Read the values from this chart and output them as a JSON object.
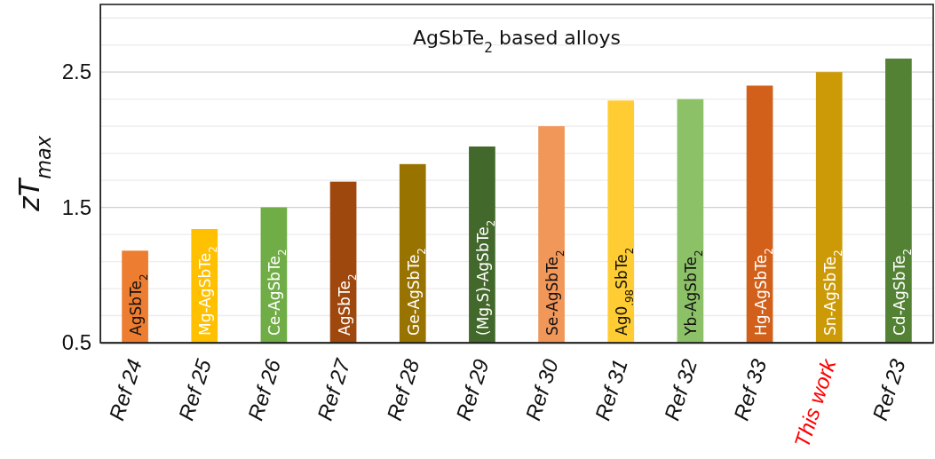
{
  "chart_data": {
    "type": "bar",
    "title": "AgSbTe$_{2}$ based alloys",
    "ylabel": "zT$_{max}$",
    "categories": [
      "Ref 24",
      "Ref 25",
      "Ref 26",
      "Ref 27",
      "Ref 28",
      "Ref 29",
      "Ref 30",
      "Ref 31",
      "Ref 32",
      "Ref 33",
      "This work",
      "Ref 23"
    ],
    "values": [
      1.18,
      1.34,
      1.5,
      1.69,
      1.82,
      1.95,
      2.1,
      2.29,
      2.3,
      2.4,
      2.5,
      2.6
    ],
    "colors": [
      "#ed7d31",
      "#ffc000",
      "#70ad47",
      "#9e480e",
      "#997300",
      "#43682b",
      "#f1975a",
      "#ffcd33",
      "#8cc168",
      "#d2601a",
      "#cc9a06",
      "#548235"
    ],
    "ylim": [
      0.5,
      3.0
    ],
    "yticks": [
      0.5,
      {
        "value": 0.7,
        "label": null
      },
      {
        "value": 0.9,
        "label": null
      },
      {
        "value": 1.1,
        "label": null
      },
      {
        "value": 1.3,
        "label": null
      },
      1.5,
      {
        "value": 1.7,
        "label": null
      },
      {
        "value": 1.9,
        "label": null
      },
      {
        "value": 2.1,
        "label": null
      },
      {
        "value": 2.3,
        "label": null
      },
      2.5,
      {
        "value": 2.7,
        "label": null
      },
      {
        "value": 2.9,
        "label": null
      }
    ],
    "grid": "y",
    "annotations": [
      {
        "text": "AgSbTe$_{2}$",
        "x": "Ref 24"
      },
      {
        "text": "Mg-AgSbTe$_{2}$",
        "x": "Ref 25"
      },
      {
        "text": "Ce-AgSbTe$_{2}$",
        "x": "Ref 26"
      },
      {
        "text": "AgSbTe$_{2}$",
        "x": "Ref 27"
      },
      {
        "text": "Ge-AgSbTe$_{2}$",
        "x": "Ref 28"
      },
      {
        "text": "(Mg,S)-AgSbTe$_{2}$",
        "x": "Ref 29"
      },
      {
        "text": "Se-AgSbTe$_{2}$",
        "x": "Ref 30"
      },
      {
        "text": "Ag0$_{.98}$SbTe$_{2}$",
        "x": "Ref 31"
      },
      {
        "text": "Yb-AgSbTe$_{2}$",
        "x": "Ref 32"
      },
      {
        "text": "Hg-AgSbTe$_{2}$",
        "x": "Ref 33"
      },
      {
        "text": "Sn-AgSbTe$_{2}$",
        "x": "This work"
      },
      {
        "text": "Cd-AgSbTe$_{2}$",
        "x": "Ref 23"
      }
    ]
  }
}
